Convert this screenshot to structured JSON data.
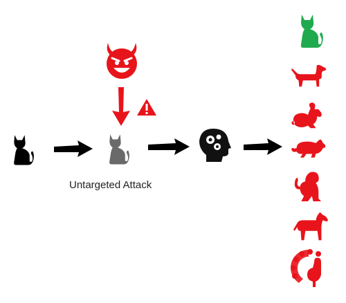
{
  "diagram": {
    "caption": "Untargeted Attack",
    "colors": {
      "clean": "#000000",
      "perturbed": "#6a6a6a",
      "attack": "#e8141b",
      "correct": "#1faa4e",
      "wrong": "#e8141b",
      "model": "#111111"
    },
    "nodes": {
      "input": "cat-icon",
      "adversary": "devil-face-icon",
      "warning": "warning-icon",
      "adversarial_input": "cat-icon",
      "model": "head-gears-icon"
    },
    "outputs": [
      {
        "icon": "cat-icon",
        "status": "correct"
      },
      {
        "icon": "dog-icon",
        "status": "wrong"
      },
      {
        "icon": "rabbit-icon",
        "status": "wrong"
      },
      {
        "icon": "rat-icon",
        "status": "wrong"
      },
      {
        "icon": "monkey-icon",
        "status": "wrong"
      },
      {
        "icon": "horse-icon",
        "status": "wrong"
      },
      {
        "icon": "peacock-icon",
        "status": "wrong"
      }
    ]
  }
}
